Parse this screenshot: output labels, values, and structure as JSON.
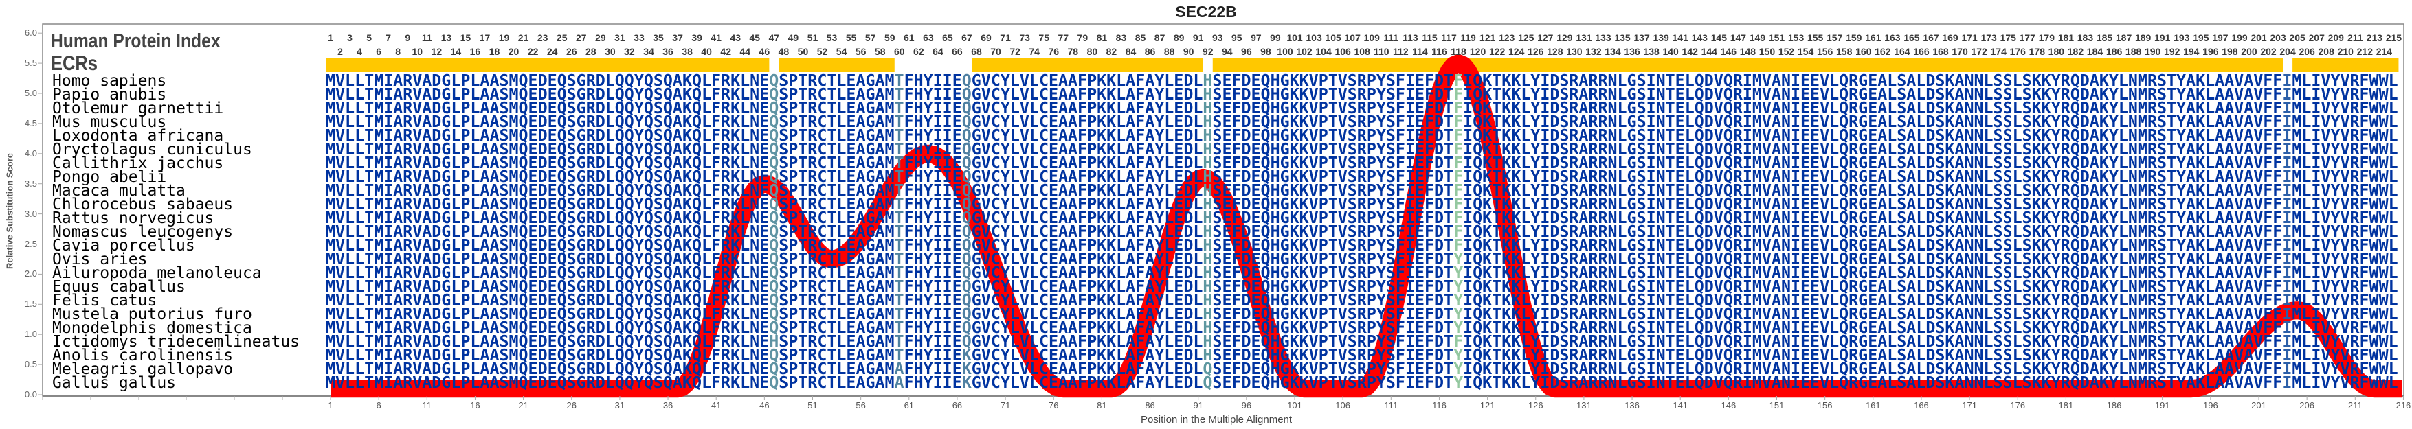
{
  "title": "SEC22B",
  "labels": {
    "human_protein_index": "Human Protein Index",
    "ecrs": "ECRs"
  },
  "colors": {
    "residue": "#0033A0",
    "ecr": "#FFC800",
    "curve": "#FF0000",
    "axis": "#888888"
  },
  "column_colors": {
    "47": "#5E93A3",
    "60": "#4F82A0",
    "67": "#4F80A2",
    "92": "#5E98A0",
    "118": "#94C8A0",
    "204": "#2C5FA8"
  },
  "position_count": 215,
  "ecr_segments": [
    [
      1,
      46
    ],
    [
      48,
      59
    ],
    [
      68,
      91
    ],
    [
      93,
      203
    ],
    [
      205,
      215
    ]
  ],
  "alignment": [
    {
      "species": "Homo sapiens",
      "seq": "MVLLTMIARVADGLPLAASMQEDEQSGRDLQQYQSQAKQLFRKLNEQSPTRCTLEAGAMTFHYIIEQGVCYLVLCEAAFPKKLAFAYLEDLHSEFDEQHGKKVPTVSRPYSFIEFDTFIQKTKKLYIDSRARRNLGSINTELQDVQRIMVANIEEVLQRGEALSALDSKANNLSSLSKKYRQDAKYLNMRSTYAKLAAVAVFFIMLIVYVRFWWL"
    },
    {
      "species": "Papio anubis",
      "seq": "MVLLTMIARVADGLPLAASMQEDEQSGRDLQQYQSQAKQLFRKLNEQSPTRCTLEAGAMTFHYIIEQGVCYLVLCEAAFPKKLAFAYLEDLHSEFDEQHGKKVPTVSRPYSFIEFDTFIQKTKKLYIDSRARRNLGSINTELQDVQRIMVANIEEVLQRGEALSALDSKANNLSSLSKKYRQDAKYLNMRSTYAKLAAVAVFFIMLIVYVRFWWL"
    },
    {
      "species": "Otolemur garnettii",
      "seq": "MVLLTMIARVADGLPLAASMQEDEQSGRDLQQYQSQAKQLFRKLNEQSPTRCTLEAGAMTFHYIIEQGVCYLVLCEAAFPKKLAFAYLEDLHSEFDEQHGKKVPTVSRPYSFIEFDTFIQKTKKLYIDSRARRNLGSINTELQDVQRIMVANIEEVLQRGEALSALDSKANNLSSLSKKYRQDAKYLNMRSTYAKLAAVAVFFIMLIVYVRFWWL"
    },
    {
      "species": "Mus musculus",
      "seq": "MVLLTMIARVADGLPLAASMQEDEQSGRDLQQYQSQAKQLFRKLNEQSPTRCTLEAGAMTFHYIIEQGVCYLVLCEAAFPKKLAFAYLEDLHSEFDEQHGKKVPTVSRPYSFIEFDTFIQKTKKLYIDSRARRNLGSINTELQDVQRIMVANIEEVLQRGEALSALDSKANNLSSLSKKYRQDAKYLNMRSTYAKLAAVAVFFIMLIVYVRFWWL"
    },
    {
      "species": "Loxodonta africana",
      "seq": "MVLLTMIARVADGLPLAASMQEDEQSGRDLQQYQSQAKQLFRKLNEQSPTRCTLEAGAMTFHYIIEQGVCYLVLCEAAFPKKLAFAYLEDLHSEFDEQHGKKVPTVSRPYSFIEFDTFIQKTKKLYIDSRARRNLGSINTELQDVQRIMVANIEEVLQRGEALSALDSKANNLSSLSKKYRQDAKYLNMRSTYAKLAAVAVFFIMLIVYVRFWWL"
    },
    {
      "species": "Oryctolagus cuniculus",
      "seq": "MVLLTMIARVADGLPLAASMQEDEQSGRDLQQYQSQAKQLFRKLNEQSPTRCTLEAGAMTFHYIIEQGVCYLVLCEAAFPKKLAFAYLEDLHSEFDEQHGKKVPTVSRPYSFIEFDTFIQKTKKLYIDSRARRNLGSINTELQDVQRIMVANIEEVLQRGEALSALDSKANNLSSLSKKYRQDAKYLNMRSTYAKLAAVAVFFIMLIVYVRFWWL"
    },
    {
      "species": "Callithrix jacchus",
      "seq": "MVLLTMIARVADGLPLAASMQEDEQSGRDLQQYQSQAKQLFRKLNEQSPTRCTLEAGAMTFHYIIEQGVCYLVLCEAAFPKKLAFAYLEDLHSEFDEQHGKKVPTVSRPYSFIEFDTFIQKTKKLYIDSRARRNLGSINTELQDVQRIMVANIEEVLQRGEALSALDSKANNLSSLSKKYRQDAKYLNMRSTYAKLAAVAVFFIMLIVYVRFWWL"
    },
    {
      "species": "Pongo abelii",
      "seq": "MVLLTMIARVADGLPLAASMQEDEQSGRDLQQYQSQAKQLFRKLNEQSPTRCTLEAGAMTFHYIIEQGVCYLVLCEAAFPKKLAFAYLEDLHSEFDEQHGKKVPTVSRPYSFIEFDTFIQKTKKLYIDSRARRNLGSINTELQDVQRIMVANIEEVLQRGEALSALDSKANNLSSLSKKYRQDAKYLNMRSTYAKLAAVAVFFIMLIVYVRFWWL"
    },
    {
      "species": "Macaca mulatta",
      "seq": "MVLLTMIARVADGLPLAASMQEDEQSGRDLQQYQSQAKQLFRKLNEQSPTRCTLEAGAMTFHYIIEQGVCYLVLCEAAFPKKLAFAYLEDLHSEFDEQHGKKVPTVSRPYSFIEFDTFIQKTKKLYIDSRARRNLGSINTELQDVQRIMVANIEEVLQRGEALSALDSKANNLSSLSKKYRQDAKYLNMRSTYAKLAAVAVFFIMLIVYVRFWWL"
    },
    {
      "species": "Chlorocebus sabaeus",
      "seq": "MVLLTMIARVADGLPLAASMQEDEQSGRDLQQYQSQAKQLFRKLNEQSPTRCTLEAGAMTFHYIIEQGVCYLVLCEAAFPKKLAFAYLEDLHSEFDEQHGKKVPTVSRPYSFIEFDTFIQKTKKLYIDSRARRNLGSINTELQDVQRIMVANIEEVLQRGEALSALDSKANNLSSLSKKYRQDAKYLNMRSTYAKLAAVAVFFIMLIVYVRFWWL"
    },
    {
      "species": "Rattus norvegicus",
      "seq": "MVLLTMIARVADGLPLAASMQEDEQSGRDLQQYQSQAKQLFRKLNEQSPTRCTLEAGAMTFHYIIEQGVCYLVLCEAAFPKKLAFAYLEDLHSEFDEQHGKKVPTVSRPYSFIEFDTFIQKTKKLYIDSRARRNLGSINTELQDVQRIMVANIEEVLQRGEALSALDSKANNLSSLSKKYRQDAKYLNMRSTYAKLAAVAVFFIMLIVYVRFWWL"
    },
    {
      "species": "Nomascus leucogenys",
      "seq": "MVLLTMIARVADGLPLAASMQEDEQSGRDLQQYQSQAKQLFRKLNEQSPTRCTLEAGAMTFHYIIEQGVCYLVLCEAAFPKKLAFAYLEDLHSEFDEQHGKKVPTVSRPYSFIEFDTFIQKTKKLYIDSRARRNLGSINTELQDVQRIMVANIEEVLQRGEALSALDSKANNLSSLSKKYRQDAKYLNMRSTYAKLAAVAVFFIMLIVYVRFWWL"
    },
    {
      "species": "Cavia porcellus",
      "seq": "MVLLTMIARVADGLPLAASMQEDEQSGRDLQQYQSQAKQLFRKLNEQSPTRCTLEAGAMTFHYIIEQGVCYLVLCEAAFPKKLAFAYLEDLHSEFDEQHGKKVPTVSRPYSFIEFDTFIQKTKKLYIDSRARRNLGSINTELQDVQRIMVANIEEVLQRGEALSALDSKANNLSSLSKKYRQDAKYLNMRSTYAKLAAVAVFFIMLIVYVRFWWL"
    },
    {
      "species": "Ovis aries",
      "seq": "MVLLTMIARVADGLPLAASMQEDEQSGRDLQQYQSQAKQLFRKLNEQSPTRCTLEAGAMTFHYIIEQGVCYLVLCEAAFPKKLAFAYLEDLHSEFDEQHGKKVPTVSRPYSFIEFDTYIQKTKKLYIDSRARRNLGSINTELQDVQRIMVANIEEVLQRGEALSALDSKANNLSSLSKKYRQDAKYLNMRSTYAKLAAVAVFFIMLIVYVRFWWL"
    },
    {
      "species": "Ailuropoda melanoleuca",
      "seq": "MVLLTMIARVADGLPLAASMQEDEQSGRDLQQYQSQAKQLFRKLNEQSPTRCTLEAGAMTFHYIIEQGVCYLVLCEAAFPKKLAFAYLEDLHSEFDEQHGKKVPTVSRPYSFIEFDTYIQKTKKLYIDSRARRNLGSINTELQDVQRIMVANIEEVLQRGEALSALDSKANNLSSLSKKYRQDAKYLNMRSTYAKLAAVAVFFIMLIVYVRFWWL"
    },
    {
      "species": "Equus caballus",
      "seq": "MVLLTMIARVADGLPLAASMQEDEQSGRDLQQYQSQAKQLFRKLNEQSPTRCTLEAGAMTFHYIIEQGVCYLVLCEAAFPKKLAFAYLEDLHSEFDEQHGKKVPTVSRPYSFIEFDTYIQKTKKLYIDSRARRNLGSINTELQDVQRIMVANIEEVLQRGEALSALDSKANNLSSLSKKYRQDAKYLNMRSTYAKLAAVAVFFIMLIVYVRFWWL"
    },
    {
      "species": "Felis catus",
      "seq": "MVLLTMIARVADGLPLAASMQEDEQSGRDLQQYQSQAKQLFRKLNEQSPTRCTLEAGAMTFHYIIEQGVCYLVLCEAAFPKKLAFAYLEDLHSEFDEQHGKKVPTVSRPYSFIEFDTYIQKTKKLYIDSRARRNLGSINTELQDVQRIMVANIEEVLQRGEALSALDSKANNLSSLSKKYRQDAKYLNMRSTYAKLAAVAVFFIMLIVYVRFWWL"
    },
    {
      "species": "Mustela putorius furo",
      "seq": "MVLLTMIARVADGLPLAASMQEDEQSGRDLQQYQSQAKQLFRKLNEQSPTRCTLEAGAMTFHYIIEQGVCYLVLCEAAFPKKLAFAYLEDLHSEFDEQHGKKVPTVSRPYSFIEFDTYIQKTKKLYIDSRARRNLGSINTELQDVQRIMVANIEEVLQRGEALSALDSKANNLSSLSKKYRQDAKYLNMRSTYAKLAAVAVFFIMLIVYVRFWWL"
    },
    {
      "species": "Monodelphis domestica",
      "seq": "MVLLTMIARVADGLPLAASMQEDEQSGRDLQQYQSQAKQLFRKLNEQSPTRCTLEAGAMTFHYIIEQGVCYLVLCEAAFPKKLAFAYLEDLHSEFDEQHGKKVPTVSRPYSFIEFDTYIQKTKKLYIDSRARRNLGSINTELQDVQRIMVANIEEVLQRGEALSALDSKANNLSSLSKKYRQDAKYLNMRSTYAKLAAVAVFFIMLIVYVRFWWL"
    },
    {
      "species": "Ictidomys tridecemlineatus",
      "seq": "MVLLTMIARVADGLPLAASMQEDEQSGRDLQQYQSQAKQLFRKLNEHSPTRCTLEAGAMTFHYIIEQGVCYLVLCEAAFPKKLAFAYLEDLHSEFDEQHGKKVPTVSRPYSFIEFDTFIQKTKKLYIDSRARRNLGSINTELQDVQRIMVANIEEVLQRGEALSALDSKANNLSSLSKKYRQDAKYLNMRSTYAKLAAVAVFFIMLIVYVRFWWL"
    },
    {
      "species": "Anolis carolinensis",
      "seq": "MVLLTMIARVADGLPLAASMQEDEQSGRDLQQYQSQAKQLFRKLNEQSPTRCTLEAGAMTFHYIIEKGVCYLVLCEAAFPKKLAFAYLEDLHSEFDEQHGKKVPTVSRPYSFIEFDTYIQKTKKLYIDSRARRNLGSINTELQDVQRIMVANIEEVLQRGEALSALDSKANNLSSLSKKYRQDAKYLNMRSTYAKLAAVAVFFIMLIVYVRFWWL"
    },
    {
      "species": "Meleagris gallopavo",
      "seq": "MVLLTMIARVADGLPLAASMQEDEQSGRDLQQYQSQAKQLFRKLNEQSPTRCTLEAGAMAFHYIIEKGVCYLVLCEAAFPKKLAFAYLEDLQSEFDEQHGKKVPTVSRPYSFIEFDTYIQKTKKLYIDSRARRNLGSINTELQDVQRIMVANIEEVLQRGEALSALDSKANNLSSLSKKYRQDAKYLNMRSTYAKLAAVAVFFIMLIVYVRFWWL"
    },
    {
      "species": "Gallus gallus",
      "seq": "MVLLTMIARVADGLPLAASMQEDEQSGRDLQQYQSQAKQLFRKLNEQSPTRCTLEAGAMAFHYIIEKGVCYLVLCEAAFPKKLAFAYLEDLQSEFDEQHGKKVPTVSRPYSFIEFDTYIQKTKKLYIDSRARRNLGSINTELQDVQRIMVANIEEVLQRGEALSALDSKANNLSSLSKKYRQDAKYLNMRSTYAKLAAVAVFFIMLIVYVRFWWL"
    }
  ],
  "chart_data": {
    "type": "line",
    "title": "SEC22B",
    "xlabel": "Position in the Multiple Alignment",
    "ylabel": "Relative Substitution Score",
    "xlim": [
      1,
      216
    ],
    "ylim": [
      0,
      6
    ],
    "xtick_step": 5,
    "ytick_step": 0.5,
    "grid": false,
    "series": [
      {
        "name": "Relative Substitution Score",
        "x": [
          1,
          37,
          46,
          53,
          63,
          77,
          82,
          91.5,
          102,
          108,
          118,
          128,
          194,
          205,
          213,
          216
        ],
        "y": [
          0.1,
          0.1,
          3.5,
          2.25,
          4.0,
          0.1,
          0.1,
          3.6,
          0.1,
          0.1,
          5.5,
          0.1,
          0.1,
          1.4,
          0.1,
          0.1
        ]
      }
    ]
  }
}
